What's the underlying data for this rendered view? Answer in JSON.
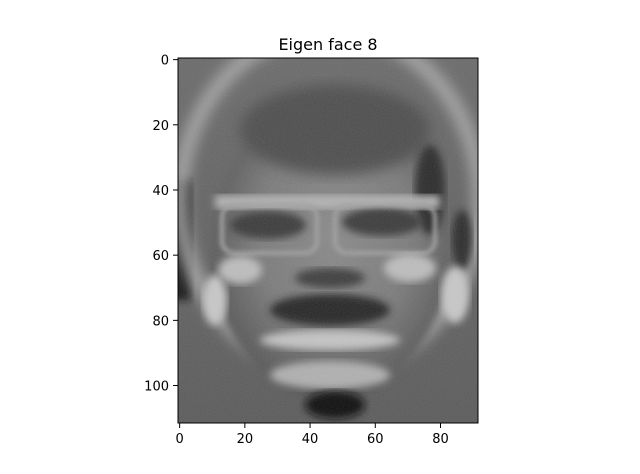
{
  "chart_data": {
    "type": "heatmap",
    "title": "Eigen face 8",
    "xlabel": "",
    "ylabel": "",
    "colormap": "gray",
    "image_size": {
      "columns": 92,
      "rows": 112
    },
    "xlim": [
      -0.5,
      91.5
    ],
    "ylim": [
      111.5,
      -0.5
    ],
    "x_ticks": [
      0,
      20,
      40,
      60,
      80
    ],
    "y_ticks": [
      0,
      20,
      40,
      60,
      80,
      100
    ],
    "x_tick_labels": [
      "0",
      "20",
      "40",
      "60",
      "80"
    ],
    "y_tick_labels": [
      "0",
      "20",
      "40",
      "60",
      "80",
      "100"
    ],
    "grid": false
  }
}
